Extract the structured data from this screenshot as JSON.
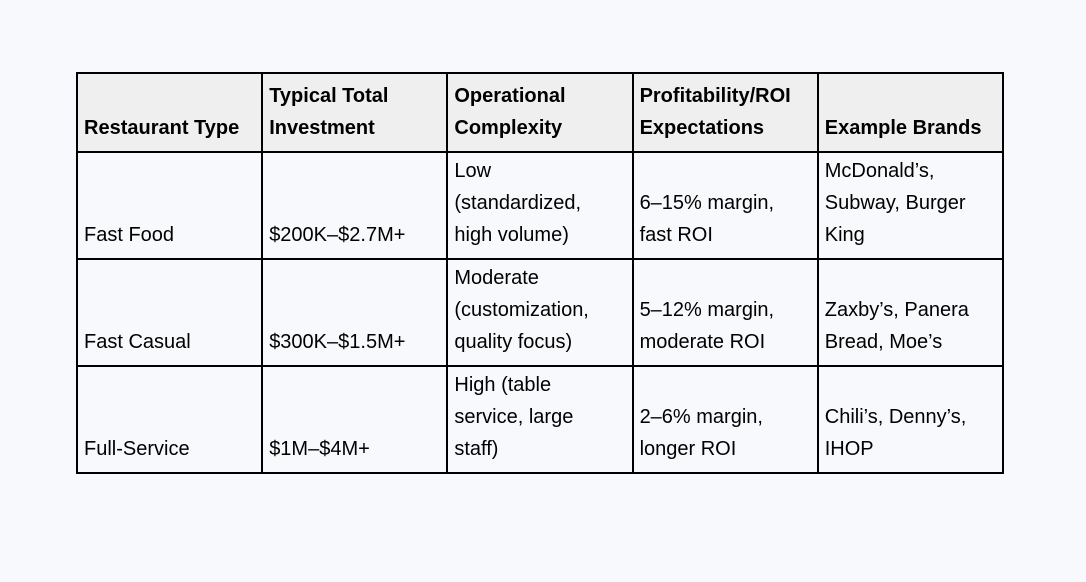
{
  "page": {
    "background_color": "#f8f9fc",
    "text_color": "#000000",
    "border_color": "#000000",
    "header_background_color": "#efefef"
  },
  "table": {
    "columns": [
      {
        "label": "Restaurant Type"
      },
      {
        "label": "Typical Total\nInvestment"
      },
      {
        "label": "Operational\nComplexity"
      },
      {
        "label": "Profitability/ROI\nExpectations"
      },
      {
        "label": "Example Brands"
      }
    ],
    "rows": [
      {
        "cells": [
          "Fast Food",
          "$200K–$2.7M+",
          "Low\n(standardized,\nhigh volume)",
          "6–15% margin,\nfast ROI",
          "McDonald’s,\nSubway, Burger\nKing"
        ]
      },
      {
        "cells": [
          "Fast Casual",
          "$300K–$1.5M+",
          "Moderate\n(customization,\nquality focus)",
          "5–12% margin,\nmoderate ROI",
          "Zaxby’s, Panera\nBread, Moe’s"
        ]
      },
      {
        "cells": [
          "Full-Service",
          "$1M–$4M+",
          "High (table\nservice, large\nstaff)",
          "2–6% margin,\nlonger ROI",
          "Chili’s, Denny’s,\nIHOP"
        ]
      }
    ]
  }
}
